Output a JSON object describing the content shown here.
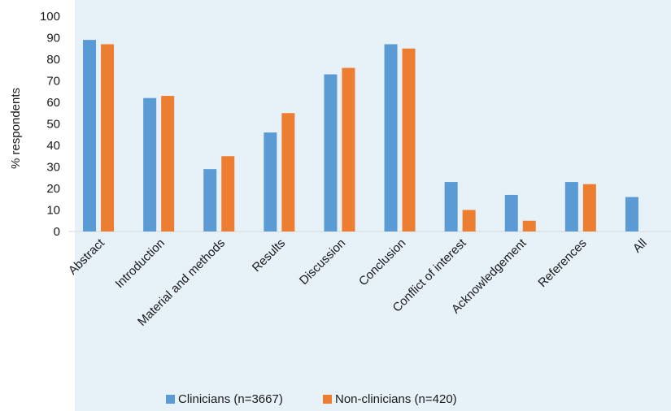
{
  "chart_data": {
    "type": "bar",
    "title": "",
    "xlabel": "",
    "ylabel": "% respondents",
    "ylim": [
      0,
      100
    ],
    "yticks": [
      0,
      10,
      20,
      30,
      40,
      50,
      60,
      70,
      80,
      90,
      100
    ],
    "categories": [
      "Abstract",
      "Introduction",
      "Material and methods",
      "Results",
      "Discussion",
      "Conclusion",
      "Conflict of interest",
      "Acknowledgement",
      "References",
      "All"
    ],
    "series": [
      {
        "name": "Clinicians (n=3667)",
        "color": "#5b9bd5",
        "values": [
          89,
          62,
          29,
          46,
          73,
          87,
          23,
          17,
          23,
          16
        ]
      },
      {
        "name": "Non-clinicians (n=420)",
        "color": "#ed7d31",
        "values": [
          87,
          63,
          35,
          55,
          76,
          85,
          10,
          5,
          22,
          null
        ]
      }
    ],
    "grid": false,
    "legend_position": "bottom"
  }
}
